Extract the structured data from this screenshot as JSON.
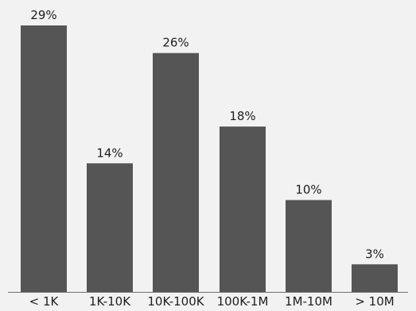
{
  "chart_data": {
    "type": "bar",
    "categories": [
      "< 1K",
      "1K-10K",
      "10K-100K",
      "100K-1M",
      "1M-10M",
      "> 10M"
    ],
    "values": [
      29,
      14,
      26,
      18,
      10,
      3
    ],
    "value_labels": [
      "29%",
      "14%",
      "26%",
      "18%",
      "10%",
      "3%"
    ],
    "ylim": [
      0,
      29
    ],
    "grid": false,
    "bar_color": "#555555",
    "background_color": "#f2f2f2"
  }
}
